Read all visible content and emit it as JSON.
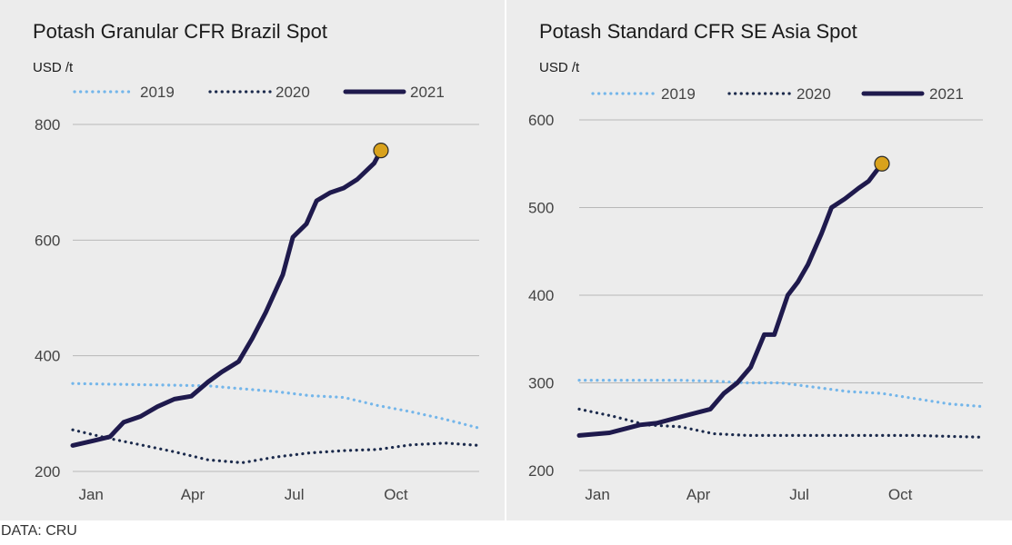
{
  "source_note": "DATA: CRU",
  "colors": {
    "2019": "#74b6ea",
    "2020": "#1b2a4c",
    "2021": "#1f1a4d",
    "marker": "#d9a21c",
    "grid": "#b8b8b8",
    "text": "#444444"
  },
  "chart_data": [
    {
      "type": "line",
      "title": "Potash Granular CFR Brazil Spot",
      "ylabel": "USD /t",
      "xlabel": "",
      "ylim": [
        200,
        800
      ],
      "yticks": [
        200,
        400,
        600,
        800
      ],
      "xticks": [
        {
          "label": "Jan",
          "month": 0.3
        },
        {
          "label": "Apr",
          "month": 3.3
        },
        {
          "label": "Jul",
          "month": 6.3
        },
        {
          "label": "Oct",
          "month": 9.3
        }
      ],
      "xlim": [
        0,
        12
      ],
      "grid": true,
      "legend_position": "top",
      "marker_series": "2021",
      "series": [
        {
          "name": "2019",
          "style": "dotted",
          "x": [
            0,
            1,
            2,
            3,
            4,
            5,
            6,
            7,
            8,
            9,
            10,
            11,
            12
          ],
          "y": [
            352,
            351,
            350,
            349,
            348,
            343,
            338,
            331,
            328,
            314,
            303,
            290,
            275
          ]
        },
        {
          "name": "2020",
          "style": "dotted",
          "x": [
            0,
            1,
            2,
            3,
            4,
            5,
            6,
            7,
            8,
            9,
            10,
            11,
            12
          ],
          "y": [
            272,
            258,
            246,
            234,
            220,
            215,
            225,
            232,
            236,
            238,
            246,
            249,
            245
          ]
        },
        {
          "name": "2021",
          "style": "solid",
          "x": [
            0,
            0.6,
            1.1,
            1.5,
            2,
            2.5,
            3,
            3.5,
            4,
            4.4,
            4.9,
            5.3,
            5.7,
            6.2,
            6.5,
            6.9,
            7.2,
            7.6,
            8,
            8.4,
            8.9,
            9.1
          ],
          "y": [
            245,
            253,
            260,
            285,
            295,
            312,
            325,
            330,
            355,
            372,
            390,
            430,
            475,
            540,
            605,
            628,
            668,
            682,
            690,
            705,
            733,
            755
          ]
        }
      ]
    },
    {
      "type": "line",
      "title": "Potash Standard CFR SE Asia Spot",
      "ylabel": "USD /t",
      "xlabel": "",
      "ylim": [
        200,
        600
      ],
      "yticks": [
        200,
        300,
        400,
        500,
        600
      ],
      "xticks": [
        {
          "label": "Jan",
          "month": 0.3
        },
        {
          "label": "Apr",
          "month": 3.3
        },
        {
          "label": "Jul",
          "month": 6.3
        },
        {
          "label": "Oct",
          "month": 9.3
        }
      ],
      "xlim": [
        0,
        12
      ],
      "grid": true,
      "legend_position": "top",
      "marker_series": "2021",
      "series": [
        {
          "name": "2019",
          "style": "dotted",
          "x": [
            0,
            1,
            2,
            3,
            4,
            5,
            6,
            7,
            8,
            9,
            10,
            11,
            12
          ],
          "y": [
            303,
            303,
            303,
            303,
            302,
            300,
            300,
            295,
            290,
            288,
            282,
            276,
            273
          ]
        },
        {
          "name": "2020",
          "style": "dotted",
          "x": [
            0,
            1,
            2,
            3,
            4,
            5,
            6,
            7,
            8,
            9,
            10,
            11,
            12
          ],
          "y": [
            270,
            262,
            252,
            250,
            242,
            240,
            240,
            240,
            240,
            240,
            240,
            239,
            238
          ]
        },
        {
          "name": "2021",
          "style": "solid",
          "x": [
            0,
            0.9,
            1.4,
            1.8,
            2.3,
            2.7,
            3.3,
            3.9,
            4.3,
            4.7,
            5.1,
            5.5,
            5.8,
            6.2,
            6.5,
            6.8,
            7.2,
            7.5,
            7.9,
            8.3,
            8.6,
            8.8,
            9.0
          ],
          "y": [
            240,
            243,
            248,
            252,
            254,
            258,
            264,
            270,
            288,
            300,
            318,
            355,
            355,
            400,
            415,
            435,
            470,
            500,
            510,
            522,
            530,
            540,
            550
          ]
        }
      ]
    }
  ]
}
